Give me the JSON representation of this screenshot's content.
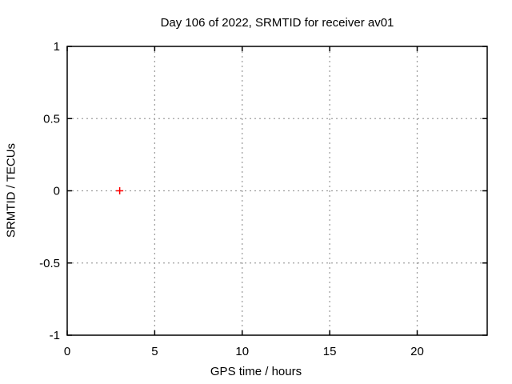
{
  "chart_data": {
    "type": "scatter",
    "title": "Day 106 of 2022, SRMTID for receiver av01",
    "xlabel": "GPS time / hours",
    "ylabel": "SRMTID / TECUs",
    "xlim": [
      0,
      24
    ],
    "ylim": [
      -1,
      1
    ],
    "xticks": [
      0,
      5,
      10,
      15,
      20
    ],
    "yticks": [
      -1,
      -0.5,
      0,
      0.5,
      1
    ],
    "grid": true,
    "legend": false,
    "series": [
      {
        "name": "SRMTID",
        "marker": "plus",
        "color": "#ff0000",
        "points": [
          {
            "x": 3,
            "y": 0
          }
        ]
      }
    ]
  },
  "colors": {
    "background": "#ffffff",
    "border": "#000000",
    "grid": "#a0a0a0",
    "tick": "#000000",
    "text": "#000000",
    "marker": "#ff0000"
  }
}
